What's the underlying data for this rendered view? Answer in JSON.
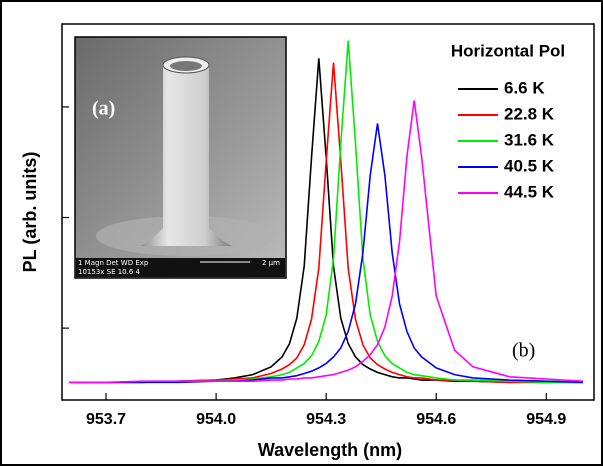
{
  "chart_data": {
    "type": "line",
    "xlabel": "Wavelength (nm)",
    "ylabel": "PL (arb. units)",
    "legend_title": "Horizontal Pol",
    "legend": "upper right",
    "panel_label": "(b)",
    "inset": {
      "label": "(a)",
      "info_line1": "1 Magn    Det  WD   Exp",
      "info_line2": "10153x   SE   10.6  4",
      "scale": "2 µm"
    },
    "xlim": [
      953.58,
      955.03
    ],
    "xticks": [
      953.7,
      {
        "value": 954.0,
        "label": "954.0"
      },
      954.3,
      954.6,
      954.9
    ],
    "ylim": [
      0,
      3.4
    ],
    "yticks": [
      0.65,
      1.65,
      2.65
    ],
    "x": [
      953.6,
      953.7,
      953.8,
      953.9,
      954.0,
      954.05,
      954.1,
      954.15,
      954.18,
      954.2,
      954.22,
      954.24,
      954.26,
      954.28,
      954.3,
      954.32,
      954.34,
      954.36,
      954.38,
      954.4,
      954.42,
      954.44,
      954.46,
      954.48,
      954.5,
      954.52,
      954.54,
      954.56,
      954.6,
      954.65,
      954.7,
      954.8,
      954.9,
      955.0
    ],
    "series": [
      {
        "name": "6.6 K",
        "color": "#000000",
        "values": [
          0.16,
          0.16,
          0.16,
          0.17,
          0.18,
          0.2,
          0.23,
          0.3,
          0.39,
          0.51,
          0.74,
          1.21,
          2.19,
          3.09,
          2.19,
          1.21,
          0.74,
          0.51,
          0.39,
          0.32,
          0.28,
          0.25,
          0.23,
          0.21,
          0.2,
          0.2,
          0.19,
          0.18,
          0.18,
          0.17,
          0.17,
          0.16,
          0.16,
          0.16
        ]
      },
      {
        "name": "22.8 K",
        "color": "#ff0000",
        "values": [
          0.16,
          0.16,
          0.16,
          0.17,
          0.18,
          0.19,
          0.2,
          0.24,
          0.28,
          0.32,
          0.38,
          0.5,
          0.73,
          1.19,
          2.16,
          3.05,
          2.16,
          1.19,
          0.73,
          0.5,
          0.38,
          0.32,
          0.28,
          0.25,
          0.23,
          0.21,
          0.2,
          0.2,
          0.18,
          0.18,
          0.17,
          0.16,
          0.16,
          0.16
        ]
      },
      {
        "name": "31.6 K",
        "color": "#00ee00",
        "values": [
          0.16,
          0.16,
          0.16,
          0.17,
          0.17,
          0.18,
          0.19,
          0.21,
          0.23,
          0.25,
          0.29,
          0.33,
          0.4,
          0.53,
          0.77,
          1.28,
          2.32,
          3.25,
          2.32,
          1.28,
          0.77,
          0.53,
          0.4,
          0.33,
          0.29,
          0.25,
          0.23,
          0.22,
          0.2,
          0.18,
          0.18,
          0.17,
          0.16,
          0.16
        ]
      },
      {
        "name": "40.5 K",
        "color": "#0000ff",
        "values": [
          0.16,
          0.16,
          0.16,
          0.16,
          0.17,
          0.17,
          0.18,
          0.2,
          0.2,
          0.21,
          0.22,
          0.24,
          0.26,
          0.29,
          0.33,
          0.39,
          0.47,
          0.62,
          0.87,
          1.33,
          2.03,
          2.5,
          2.03,
          1.33,
          0.87,
          0.62,
          0.47,
          0.39,
          0.29,
          0.23,
          0.2,
          0.18,
          0.17,
          0.16
        ]
      },
      {
        "name": "44.5 K",
        "color": "#ff00ff",
        "values": [
          0.16,
          0.16,
          0.17,
          0.17,
          0.17,
          0.17,
          0.17,
          0.18,
          0.18,
          0.19,
          0.19,
          0.2,
          0.2,
          0.21,
          0.22,
          0.23,
          0.25,
          0.27,
          0.3,
          0.35,
          0.41,
          0.5,
          0.66,
          0.94,
          1.43,
          2.2,
          2.71,
          2.2,
          0.94,
          0.45,
          0.3,
          0.21,
          0.19,
          0.17
        ]
      }
    ]
  }
}
